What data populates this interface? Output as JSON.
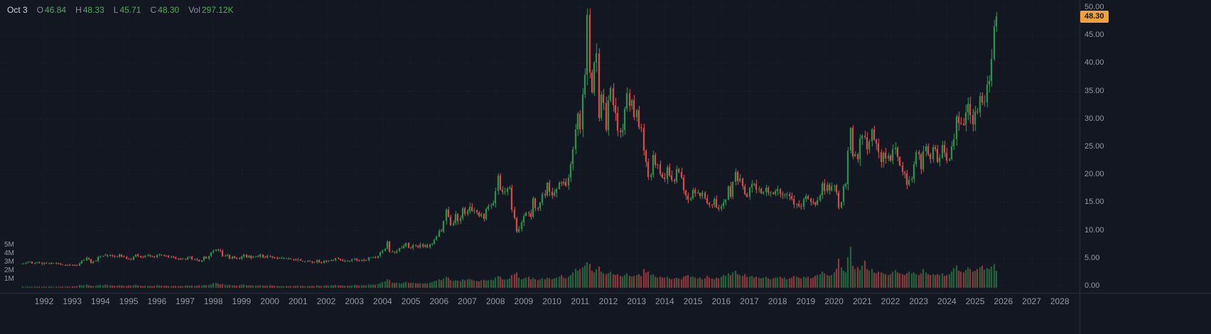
{
  "legend": {
    "date": "Oct 3",
    "items": [
      {
        "label": "O",
        "value": "46.84"
      },
      {
        "label": "H",
        "value": "48.33"
      },
      {
        "label": "L",
        "value": "45.71"
      },
      {
        "label": "C",
        "value": "48.30"
      },
      {
        "label": "Vol",
        "value": "297.12K"
      }
    ]
  },
  "price_badge": {
    "value": "48.30",
    "bg": "#f0a13c",
    "text_color": "#131722"
  },
  "colors": {
    "background": "#131722",
    "up": "#33a14f",
    "down": "#ef5350",
    "legend_label": "#8a8f9d",
    "legend_value": "#4caf50",
    "axis_text": "#9598a1",
    "grid": "rgba(125,135,155,0.14)",
    "separator": "#2a2e39"
  },
  "chart_data": {
    "type": "candlestick_with_volume",
    "title": "",
    "y_axis": {
      "min": 0,
      "max": 50,
      "ticks": [
        "50.00",
        "45.00",
        "40.00",
        "35.00",
        "30.00",
        "25.00",
        "20.00",
        "15.00",
        "10.00",
        "5.00",
        "0.00"
      ]
    },
    "volume_axis": {
      "ticks": [
        "5M",
        "4M",
        "3M",
        "2M",
        "1M"
      ],
      "unit": "M"
    },
    "x_axis": {
      "ticks": [
        "1992",
        "1993",
        "1994",
        "1995",
        "1996",
        "1997",
        "1998",
        "1999",
        "2000",
        "2001",
        "2002",
        "2003",
        "2004",
        "2005",
        "2006",
        "2007",
        "2008",
        "2009",
        "2010",
        "2011",
        "2012",
        "2013",
        "2014",
        "2015",
        "2016",
        "2017",
        "2018",
        "2019",
        "2020",
        "2021",
        "2022",
        "2023",
        "2024",
        "2025",
        "2026",
        "2027",
        "2028"
      ]
    },
    "last_price": 48.3,
    "series_start_year": 1991,
    "series_start_month": 4,
    "series_interval_months": 1,
    "series": [
      {
        "year": 1991,
        "closes": [
          3.95,
          4.05,
          4.25,
          4.3,
          3.95,
          4.05,
          4.15,
          4.05,
          3.9
        ],
        "volumes": [
          0.15,
          0.12,
          0.14,
          0.13,
          0.12,
          0.15,
          0.13,
          0.14,
          0.12
        ]
      },
      {
        "year": 1992,
        "closes": [
          4.1,
          4.05,
          4.1,
          4.0,
          4.05,
          4.05,
          3.95,
          3.8,
          3.75,
          3.72,
          3.76,
          3.7
        ],
        "volumes": [
          0.15,
          0.13,
          0.16,
          0.14,
          0.12,
          0.15,
          0.13,
          0.14,
          0.16,
          0.13,
          0.15,
          0.14
        ]
      },
      {
        "year": 1993,
        "closes": [
          3.68,
          3.65,
          3.6,
          4.0,
          4.45,
          4.6,
          4.95,
          4.75,
          4.1,
          4.35,
          4.45,
          5.1
        ],
        "volumes": [
          0.18,
          0.16,
          0.2,
          0.35,
          0.3,
          0.28,
          0.4,
          0.3,
          0.25,
          0.22,
          0.24,
          0.3
        ]
      },
      {
        "year": 1994,
        "closes": [
          5.2,
          5.35,
          5.5,
          5.3,
          5.45,
          5.3,
          5.25,
          5.2,
          5.55,
          5.2,
          5.15,
          4.85
        ],
        "volumes": [
          0.35,
          0.3,
          0.4,
          0.32,
          0.3,
          0.28,
          0.25,
          0.24,
          0.3,
          0.26,
          0.24,
          0.22
        ]
      },
      {
        "year": 1995,
        "closes": [
          4.75,
          4.65,
          5.2,
          5.55,
          5.3,
          5.15,
          5.1,
          5.35,
          5.45,
          5.3,
          5.2,
          5.1
        ],
        "volumes": [
          0.28,
          0.24,
          0.3,
          0.35,
          0.28,
          0.25,
          0.22,
          0.26,
          0.24,
          0.22,
          0.2,
          0.22
        ]
      },
      {
        "year": 1996,
        "closes": [
          5.45,
          5.55,
          5.5,
          5.35,
          5.3,
          5.1,
          5.2,
          5.15,
          4.9,
          4.85,
          4.75,
          4.8
        ],
        "volumes": [
          0.3,
          0.28,
          0.26,
          0.24,
          0.25,
          0.22,
          0.2,
          0.22,
          0.24,
          0.2,
          0.22,
          0.2
        ]
      },
      {
        "year": 1997,
        "closes": [
          4.75,
          5.15,
          5.2,
          4.7,
          4.75,
          4.65,
          4.35,
          4.55,
          5.2,
          4.9,
          5.3,
          5.95
        ],
        "volumes": [
          0.25,
          0.28,
          0.24,
          0.26,
          0.22,
          0.24,
          0.3,
          0.26,
          0.35,
          0.3,
          0.32,
          0.4
        ]
      },
      {
        "year": 1998,
        "closes": [
          6.25,
          6.5,
          6.35,
          6.25,
          5.25,
          5.4,
          5.5,
          4.85,
          5.2,
          5.0,
          4.95,
          4.85
        ],
        "volumes": [
          0.55,
          0.6,
          0.5,
          0.4,
          0.45,
          0.35,
          0.3,
          0.35,
          0.3,
          0.28,
          0.26,
          0.3
        ]
      },
      {
        "year": 1999,
        "closes": [
          5.2,
          5.55,
          5.1,
          5.3,
          4.95,
          5.25,
          5.25,
          5.2,
          5.55,
          5.15,
          5.1,
          5.35
        ],
        "volumes": [
          0.35,
          0.4,
          0.3,
          0.28,
          0.3,
          0.26,
          0.28,
          0.24,
          0.3,
          0.26,
          0.24,
          0.26
        ]
      },
      {
        "year": 2000,
        "closes": [
          5.25,
          5.1,
          5.0,
          4.95,
          4.95,
          4.95,
          4.95,
          4.9,
          4.9,
          4.75,
          4.7,
          4.57
        ],
        "volumes": [
          0.3,
          0.26,
          0.24,
          0.22,
          0.2,
          0.22,
          0.2,
          0.22,
          0.2,
          0.22,
          0.2,
          0.24
        ]
      },
      {
        "year": 2001,
        "closes": [
          4.75,
          4.45,
          4.35,
          4.35,
          4.45,
          4.35,
          4.2,
          4.15,
          4.6,
          4.25,
          4.1,
          4.52
        ],
        "volumes": [
          0.26,
          0.22,
          0.24,
          0.2,
          0.22,
          0.2,
          0.22,
          0.2,
          0.3,
          0.24,
          0.22,
          0.26
        ]
      },
      {
        "year": 2002,
        "closes": [
          4.3,
          4.45,
          4.6,
          4.55,
          4.95,
          4.85,
          4.65,
          4.45,
          4.5,
          4.4,
          4.45,
          4.67
        ],
        "volumes": [
          0.28,
          0.26,
          0.3,
          0.28,
          0.35,
          0.3,
          0.28,
          0.26,
          0.24,
          0.26,
          0.24,
          0.28
        ]
      },
      {
        "year": 2003,
        "closes": [
          4.85,
          4.55,
          4.45,
          4.6,
          4.5,
          4.55,
          5.1,
          5.1,
          5.15,
          5.0,
          5.3,
          5.97
        ],
        "volumes": [
          0.35,
          0.3,
          0.28,
          0.3,
          0.28,
          0.3,
          0.4,
          0.35,
          0.38,
          0.35,
          0.45,
          0.55
        ]
      },
      {
        "year": 2004,
        "closes": [
          6.25,
          6.65,
          7.9,
          6.1,
          6.1,
          5.95,
          6.3,
          6.7,
          6.8,
          7.2,
          7.6,
          6.82
        ],
        "volumes": [
          0.7,
          0.75,
          1.0,
          0.9,
          0.6,
          0.55,
          0.6,
          0.55,
          0.5,
          0.6,
          0.7,
          0.6
        ]
      },
      {
        "year": 2005,
        "closes": [
          6.75,
          7.3,
          7.2,
          6.95,
          7.45,
          7.05,
          7.25,
          6.85,
          7.45,
          7.55,
          8.3,
          8.83
        ],
        "volumes": [
          0.55,
          0.6,
          0.55,
          0.5,
          0.55,
          0.5,
          0.55,
          0.5,
          0.6,
          0.65,
          0.8,
          0.85
        ]
      },
      {
        "year": 2006,
        "closes": [
          9.85,
          9.75,
          11.55,
          13.6,
          12.4,
          10.85,
          11.25,
          12.85,
          11.55,
          12.15,
          13.95,
          12.9
        ],
        "volumes": [
          1.0,
          0.9,
          1.1,
          1.3,
          1.2,
          0.9,
          0.8,
          0.9,
          0.85,
          0.8,
          1.0,
          0.9
        ]
      },
      {
        "year": 2007,
        "closes": [
          13.45,
          14.2,
          13.35,
          13.55,
          13.15,
          12.45,
          12.85,
          12.05,
          13.75,
          14.3,
          14.45,
          14.76
        ],
        "volumes": [
          1.0,
          1.05,
          0.95,
          0.85,
          0.8,
          0.75,
          0.9,
          0.95,
          0.85,
          0.9,
          0.95,
          0.9
        ]
      },
      {
        "year": 2008,
        "closes": [
          16.95,
          19.75,
          17.25,
          16.85,
          16.85,
          17.5,
          17.55,
          13.7,
          12.15,
          9.75,
          10.2,
          11.3
        ],
        "volumes": [
          1.2,
          1.4,
          1.3,
          1.0,
          0.95,
          1.0,
          1.1,
          1.5,
          1.6,
          1.8,
          1.2,
          1.0
        ]
      },
      {
        "year": 2009,
        "closes": [
          12.55,
          13.1,
          13.05,
          12.35,
          15.65,
          13.95,
          13.9,
          14.95,
          16.45,
          16.25,
          18.45,
          16.85
        ],
        "volumes": [
          1.1,
          1.2,
          1.3,
          1.0,
          1.2,
          1.0,
          0.9,
          1.0,
          1.1,
          1.0,
          1.2,
          1.1
        ]
      },
      {
        "year": 2010,
        "closes": [
          16.2,
          16.65,
          17.4,
          18.55,
          18.4,
          18.65,
          17.95,
          19.35,
          21.75,
          24.55,
          28.1,
          30.92
        ],
        "volumes": [
          1.0,
          1.1,
          1.2,
          1.3,
          1.5,
          1.2,
          1.1,
          1.3,
          1.5,
          1.8,
          2.2,
          2.0
        ]
      },
      {
        "year": 2011,
        "closes": [
          28.0,
          34.3,
          37.85,
          48.55,
          38.25,
          34.75,
          40.1,
          41.7,
          30.05,
          34.25,
          32.75,
          27.9
        ],
        "volumes": [
          2.2,
          2.4,
          2.6,
          3.0,
          2.8,
          2.0,
          1.8,
          2.2,
          2.5,
          1.9,
          1.7,
          1.6
        ]
      },
      {
        "year": 2012,
        "closes": [
          33.25,
          35.5,
          32.45,
          31.0,
          27.75,
          27.5,
          27.95,
          31.7,
          34.55,
          32.25,
          33.3,
          30.25
        ],
        "volumes": [
          1.7,
          1.9,
          1.6,
          1.5,
          1.6,
          1.4,
          1.3,
          1.5,
          1.7,
          1.4,
          1.3,
          1.4
        ]
      },
      {
        "year": 2013,
        "closes": [
          31.5,
          28.5,
          28.3,
          24.2,
          22.25,
          19.55,
          19.9,
          23.45,
          21.7,
          21.85,
          20.0,
          19.4
        ],
        "volumes": [
          1.5,
          1.6,
          1.4,
          2.2,
          1.8,
          1.9,
          1.5,
          1.6,
          1.3,
          1.2,
          1.3,
          1.2
        ]
      },
      {
        "year": 2014,
        "closes": [
          19.15,
          21.25,
          19.75,
          19.05,
          18.7,
          20.95,
          20.4,
          19.4,
          17.05,
          16.15,
          15.45,
          15.7
        ],
        "volumes": [
          1.2,
          1.3,
          1.1,
          1.0,
          1.1,
          1.2,
          1.1,
          1.0,
          1.3,
          1.4,
          1.5,
          1.3
        ]
      },
      {
        "year": 2015,
        "closes": [
          17.2,
          16.55,
          16.65,
          16.1,
          16.7,
          15.7,
          14.8,
          14.55,
          14.5,
          15.55,
          14.05,
          13.8
        ],
        "volumes": [
          1.3,
          1.2,
          1.1,
          1.2,
          1.0,
          1.1,
          1.4,
          1.2,
          1.1,
          1.0,
          1.2,
          1.1
        ]
      },
      {
        "year": 2016,
        "closes": [
          14.25,
          14.9,
          15.45,
          17.85,
          15.95,
          18.6,
          20.35,
          18.7,
          19.2,
          17.8,
          16.5,
          15.95
        ],
        "volumes": [
          1.3,
          1.5,
          1.4,
          1.7,
          1.5,
          1.8,
          2.0,
          1.6,
          1.5,
          1.4,
          1.6,
          1.3
        ]
      },
      {
        "year": 2017,
        "closes": [
          17.55,
          18.3,
          18.25,
          17.2,
          17.3,
          16.6,
          16.8,
          17.55,
          16.65,
          16.7,
          16.45,
          16.95
        ],
        "volumes": [
          1.3,
          1.4,
          1.2,
          1.3,
          1.2,
          1.1,
          1.2,
          1.3,
          1.1,
          1.0,
          1.1,
          1.2
        ]
      },
      {
        "year": 2018,
        "closes": [
          17.3,
          16.4,
          16.3,
          16.35,
          16.45,
          16.1,
          15.55,
          14.55,
          14.7,
          14.3,
          14.15,
          15.5
        ],
        "volumes": [
          1.2,
          1.3,
          1.1,
          1.2,
          1.0,
          1.1,
          1.2,
          1.4,
          1.3,
          1.2,
          1.1,
          1.3
        ]
      },
      {
        "year": 2019,
        "closes": [
          16.05,
          15.6,
          15.1,
          14.95,
          14.55,
          15.3,
          16.25,
          18.35,
          17.0,
          18.1,
          17.05,
          17.85
        ],
        "volumes": [
          1.2,
          1.3,
          1.1,
          1.2,
          1.4,
          1.5,
          1.6,
          1.9,
          1.7,
          1.5,
          1.4,
          1.5
        ]
      },
      {
        "year": 2020,
        "closes": [
          18.0,
          16.65,
          14.0,
          15.0,
          17.85,
          18.2,
          24.2,
          28.3,
          23.25,
          23.65,
          22.65,
          26.4
        ],
        "volumes": [
          1.8,
          2.2,
          3.4,
          2.4,
          2.0,
          1.8,
          3.6,
          4.8,
          2.6,
          2.2,
          2.4,
          2.1
        ]
      },
      {
        "year": 2021,
        "closes": [
          26.95,
          26.65,
          24.45,
          25.9,
          28.05,
          26.15,
          25.5,
          23.95,
          22.15,
          23.9,
          22.85,
          23.3
        ],
        "volumes": [
          2.6,
          3.2,
          2.2,
          2.0,
          2.2,
          1.8,
          1.7,
          1.9,
          1.8,
          1.7,
          1.6,
          1.5
        ]
      },
      {
        "year": 2022,
        "closes": [
          22.45,
          24.45,
          24.75,
          23.05,
          21.55,
          20.35,
          20.2,
          18.05,
          19.0,
          19.15,
          21.75,
          23.95
        ],
        "volumes": [
          1.6,
          1.9,
          2.1,
          1.8,
          1.7,
          1.6,
          1.5,
          1.7,
          1.9,
          1.7,
          1.8,
          1.6
        ]
      },
      {
        "year": 2023,
        "closes": [
          23.55,
          20.9,
          24.1,
          25.05,
          23.55,
          22.75,
          24.85,
          24.45,
          22.2,
          22.95,
          25.25,
          23.8
        ],
        "volumes": [
          1.5,
          1.7,
          2.2,
          1.8,
          1.6,
          1.5,
          1.6,
          1.5,
          1.6,
          1.5,
          1.7,
          1.4
        ]
      },
      {
        "year": 2024,
        "closes": [
          22.5,
          22.65,
          24.95,
          26.3,
          30.4,
          29.15,
          29.05,
          28.85,
          31.15,
          32.7,
          30.6,
          28.9
        ],
        "volumes": [
          1.5,
          1.6,
          1.9,
          2.3,
          2.6,
          2.0,
          1.9,
          1.8,
          2.1,
          2.4,
          2.2,
          1.9
        ]
      },
      {
        "year": 2025,
        "closes": [
          31.3,
          31.15,
          34.1,
          32.95,
          32.95,
          36.1,
          36.75,
          40.7,
          46.6,
          48.3
        ],
        "volumes": [
          2.0,
          2.2,
          2.4,
          2.6,
          2.1,
          2.3,
          2.2,
          2.5,
          2.8,
          2.0
        ]
      }
    ]
  }
}
